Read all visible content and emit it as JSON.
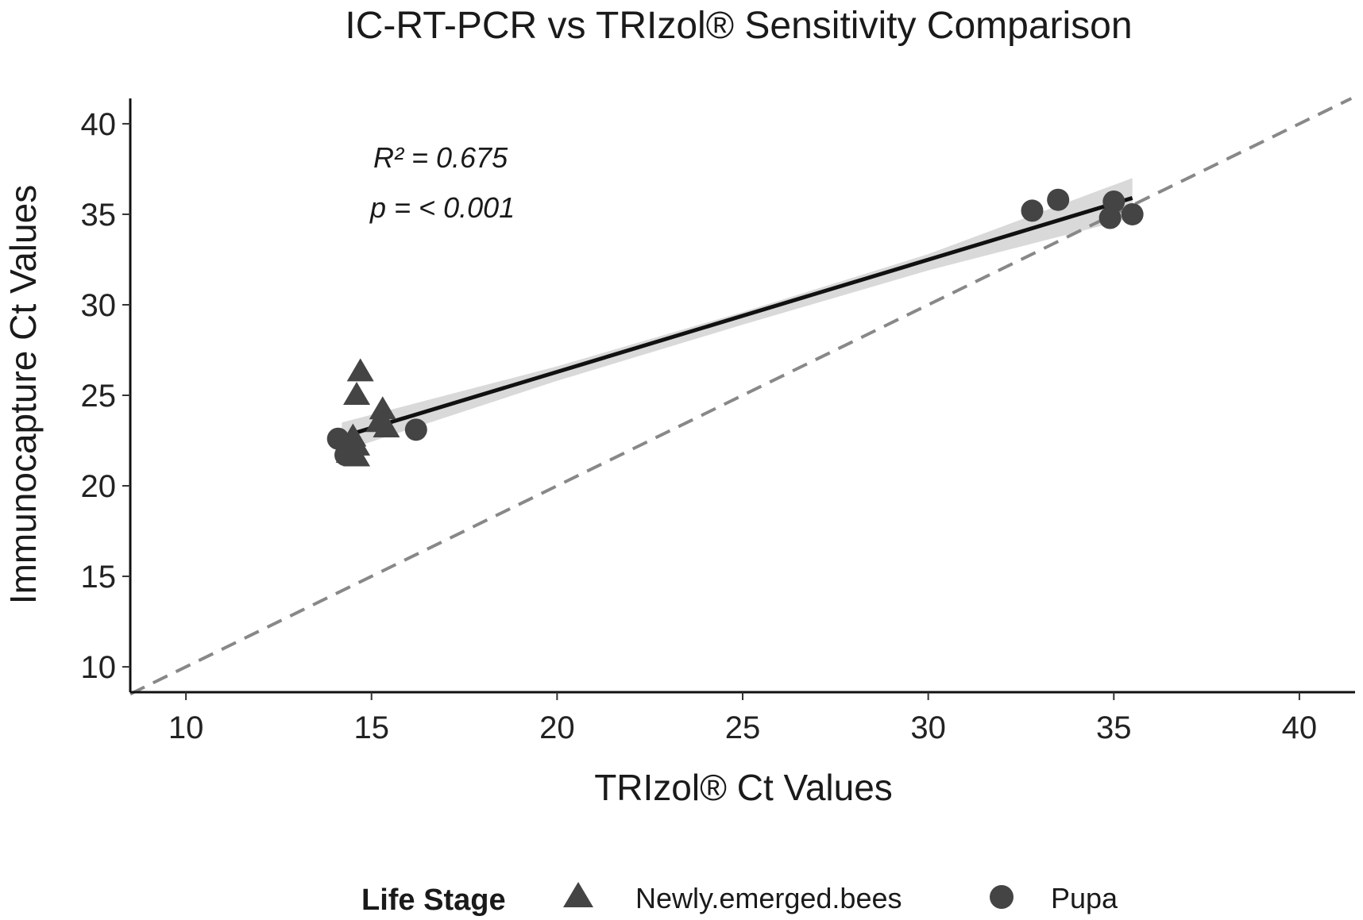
{
  "chart_data": {
    "type": "scatter",
    "title": "IC-RT-PCR vs TRIzol® Sensitivity Comparison",
    "xlabel": "TRIzol® Ct Values",
    "ylabel": "Immunocapture Ct Values",
    "xlim": [
      8.5,
      41.5
    ],
    "ylim": [
      8.6,
      41.4
    ],
    "xticks": [
      10,
      15,
      20,
      25,
      30,
      35,
      40
    ],
    "yticks": [
      10,
      15,
      20,
      25,
      30,
      35,
      40
    ],
    "grid": false,
    "annotations": {
      "r2": "R² = 0.675",
      "p": "p = < 0.001"
    },
    "reference_line": {
      "style": "dashed",
      "slope": 1,
      "intercept": 0,
      "color": "#888888"
    },
    "fit_line": {
      "x": [
        14.2,
        35.5
      ],
      "y": [
        22.7,
        35.9
      ],
      "color": "#111111"
    },
    "confidence_band": {
      "x": [
        14.2,
        20,
        25,
        30,
        35.5
      ],
      "lower": [
        21.9,
        25.8,
        28.9,
        31.9,
        34.8
      ],
      "upper": [
        23.5,
        26.6,
        29.6,
        32.8,
        37.0
      ],
      "color": "#d9d9d9"
    },
    "legend": {
      "title": "Life Stage",
      "position": "bottom"
    },
    "series": [
      {
        "name": "Newly.emerged.bees",
        "marker": "triangle",
        "color": "#444444",
        "points": [
          {
            "x": 14.7,
            "y": 26.3
          },
          {
            "x": 14.6,
            "y": 25.0
          },
          {
            "x": 15.3,
            "y": 24.2
          },
          {
            "x": 15.2,
            "y": 23.5
          },
          {
            "x": 15.4,
            "y": 23.2
          },
          {
            "x": 14.5,
            "y": 22.7
          },
          {
            "x": 14.6,
            "y": 22.2
          },
          {
            "x": 14.4,
            "y": 21.8
          },
          {
            "x": 14.6,
            "y": 21.6
          }
        ]
      },
      {
        "name": "Pupa",
        "marker": "circle",
        "color": "#444444",
        "points": [
          {
            "x": 14.1,
            "y": 22.6
          },
          {
            "x": 16.2,
            "y": 23.1
          },
          {
            "x": 14.3,
            "y": 21.7
          },
          {
            "x": 32.8,
            "y": 35.2
          },
          {
            "x": 33.5,
            "y": 35.8
          },
          {
            "x": 35.0,
            "y": 35.7
          },
          {
            "x": 34.9,
            "y": 34.8
          },
          {
            "x": 35.5,
            "y": 35.0
          }
        ]
      }
    ]
  }
}
